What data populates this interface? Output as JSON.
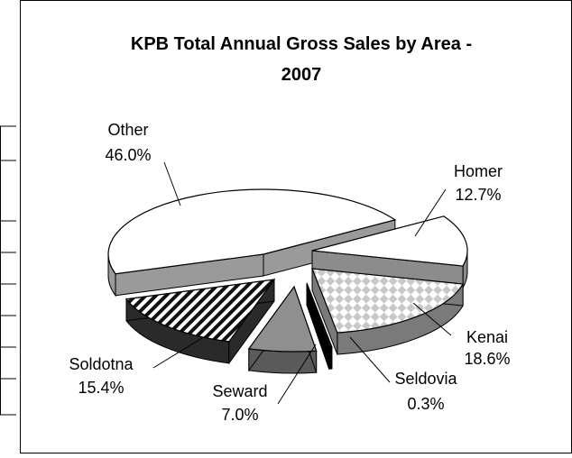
{
  "chart_data": {
    "type": "pie",
    "title_lines": [
      "KPB Total Annual Gross Sales by Area -",
      "2007"
    ],
    "slices": [
      {
        "label": "Homer",
        "value": 12.7,
        "value_text": "12.7%"
      },
      {
        "label": "Kenai",
        "value": 18.6,
        "value_text": "18.6%"
      },
      {
        "label": "Seldovia",
        "value": 0.3,
        "value_text": "0.3%"
      },
      {
        "label": "Seward",
        "value": 7.0,
        "value_text": "7.0%"
      },
      {
        "label": "Soldotna",
        "value": 15.4,
        "value_text": "15.4%"
      },
      {
        "label": "Other",
        "value": 46.0,
        "value_text": "46.0%"
      }
    ],
    "style": "3d-exploded",
    "legend": "none",
    "colors": {
      "Homer": "#ffffff",
      "Kenai": "#d4d4d4",
      "Seldovia": "#111111",
      "Seward": "#8a8a8a",
      "Soldotna": "#111111",
      "Other": "#ffffff"
    }
  }
}
